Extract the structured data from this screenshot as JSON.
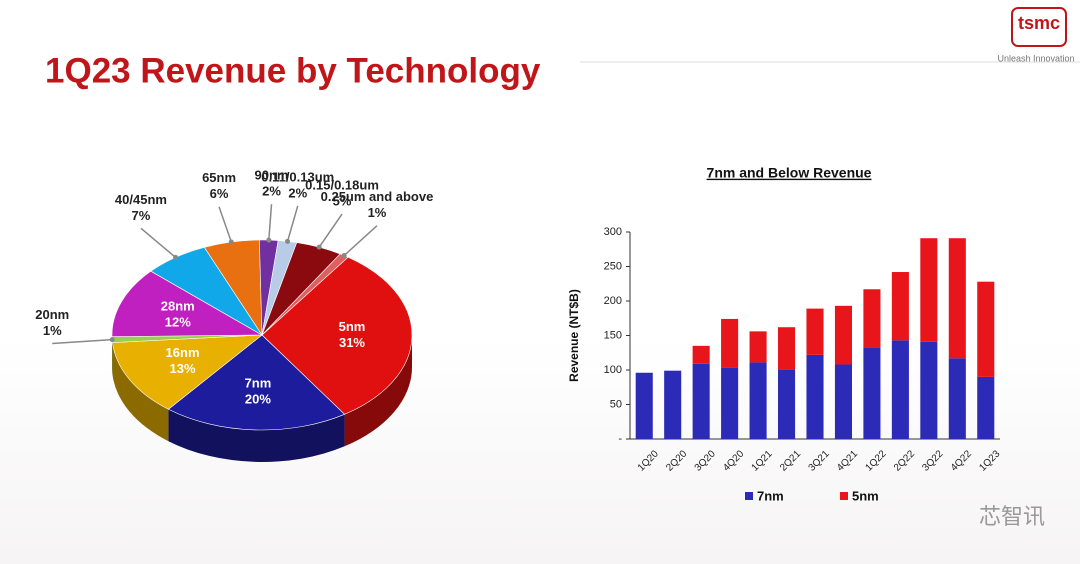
{
  "header": {
    "title": "1Q23 Revenue by Technology",
    "logo": "tsmc",
    "tagline": "Unleash Innovation"
  },
  "watermark": "芯智讯",
  "chart_data": [
    {
      "type": "pie",
      "categories": [
        "5nm",
        "7nm",
        "16nm",
        "20nm",
        "28nm",
        "40/45nm",
        "65nm",
        "90nm",
        "0.11/0.13um",
        "0.15/0.18um",
        "0.25um and above"
      ],
      "values": [
        31,
        20,
        13,
        1,
        12,
        7,
        6,
        2,
        2,
        5,
        1
      ],
      "value_labels": [
        "31%",
        "20%",
        "13%",
        "1%",
        "12%",
        "7%",
        "6%",
        "2%",
        "2%",
        "5%",
        "1%"
      ],
      "colors": [
        "#e01010",
        "#1c1c9c",
        "#e8b000",
        "#9ad04a",
        "#c020c0",
        "#10a8e8",
        "#e87010",
        "#7030a0",
        "#b8cce8",
        "#8b0a10",
        "#e06060"
      ]
    },
    {
      "type": "bar",
      "stacked": true,
      "title": "7nm and Below Revenue",
      "y_label": "Revenue (NT$B)",
      "categories": [
        "1Q20",
        "2Q20",
        "3Q20",
        "4Q20",
        "1Q21",
        "2Q21",
        "3Q21",
        "4Q21",
        "1Q22",
        "2Q22",
        "3Q22",
        "4Q22",
        "1Q23"
      ],
      "series": [
        {
          "name": "7nm",
          "color": "#2b2bb8",
          "values": [
            96,
            99,
            109,
            103,
            111,
            101,
            122,
            108,
            133,
            143,
            141,
            117,
            90
          ]
        },
        {
          "name": "5nm",
          "color": "#e8161b",
          "values": [
            0,
            0,
            26,
            71,
            45,
            61,
            67,
            85,
            84,
            99,
            150,
            174,
            138
          ]
        }
      ],
      "ylim": [
        0,
        300
      ],
      "yticks": [
        {
          "value": 0,
          "label": "-"
        },
        50,
        100,
        150,
        200,
        250,
        300
      ],
      "legend": "bottom"
    }
  ]
}
